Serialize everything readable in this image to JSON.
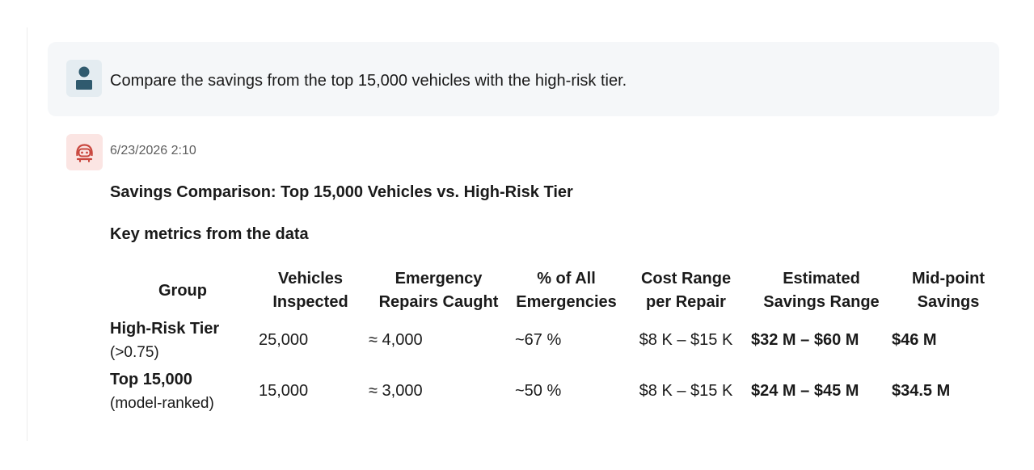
{
  "user_message": {
    "text": "Compare the savings from the top 15,000 vehicles with the high-risk tier."
  },
  "bot_message": {
    "timestamp": "6/23/2026 2:10",
    "title": "Savings Comparison: Top 15,000 Vehicles vs. High-Risk Tier",
    "subtitle": "Key metrics from the data",
    "table": {
      "headers": [
        {
          "line1": "Group",
          "line2": ""
        },
        {
          "line1": "Vehicles",
          "line2": "Inspected"
        },
        {
          "line1": "Emergency",
          "line2": "Repairs Caught"
        },
        {
          "line1": "% of All",
          "line2": "Emergencies"
        },
        {
          "line1": "Cost Range",
          "line2": "per Repair"
        },
        {
          "line1": "Estimated",
          "line2": "Savings Range"
        },
        {
          "line1": "Mid-point",
          "line2": "Savings"
        }
      ],
      "rows": [
        {
          "group": "High-Risk Tier",
          "group_sub": "(>0.75)",
          "vehicles": "25,000",
          "repairs": "≈ 4,000",
          "percent": "~67 %",
          "cost": "$8 K – $15 K",
          "savings_range": "$32 M – $60 M",
          "midpoint": "$46 M"
        },
        {
          "group": "Top 15,000",
          "group_sub": "(model-ranked)",
          "vehicles": "15,000",
          "repairs": "≈ 3,000",
          "percent": "~50 %",
          "cost": "$8 K – $15 K",
          "savings_range": "$24 M – $45 M",
          "midpoint": "$34.5 M"
        }
      ]
    }
  },
  "icons": {
    "user": "user-avatar-icon",
    "bot": "bot-avatar-icon"
  },
  "colors": {
    "user_bubble_bg": "#f5f7f9",
    "user_avatar_bg": "#e4ecf1",
    "user_avatar_fg": "#2f5a6e",
    "bot_avatar_bg": "#fbe5e3",
    "bot_avatar_fg": "#c9463d"
  }
}
